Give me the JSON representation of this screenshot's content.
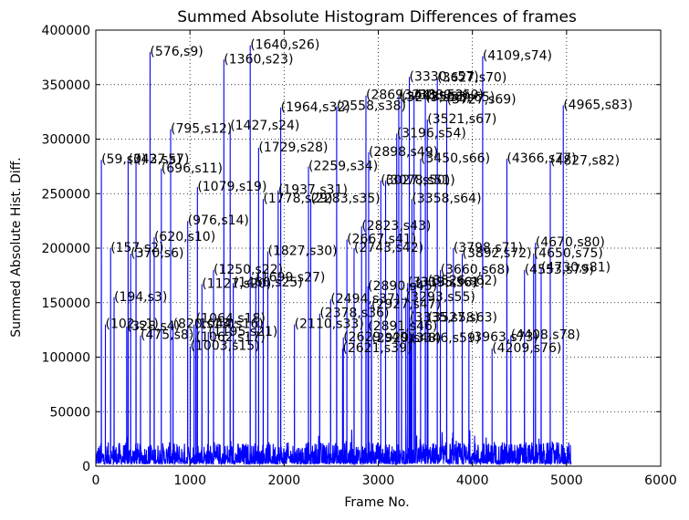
{
  "chart_data": {
    "type": "line",
    "title": "Summed Absolute Histogram Differences of frames",
    "xlabel": "Frame No.",
    "ylabel": "Summed Absolute Hist. Diff.",
    "xlim": [
      0,
      6000
    ],
    "ylim": [
      0,
      400000
    ],
    "xticks": [
      0,
      1000,
      2000,
      3000,
      4000,
      5000,
      6000
    ],
    "yticks": [
      0,
      50000,
      100000,
      150000,
      200000,
      250000,
      300000,
      350000,
      400000
    ],
    "grid": true,
    "series_color": "#0000ff",
    "baseline": {
      "x_start": 0,
      "x_end": 5050,
      "level_min": 2000,
      "level_max": 22000
    },
    "peaks": [
      {
        "label": "(59,s0)",
        "x": 59,
        "y": 281000
      },
      {
        "label": "(102,s1)",
        "x": 102,
        "y": 130000
      },
      {
        "label": "(157,s2)",
        "x": 157,
        "y": 200000
      },
      {
        "label": "(194,s3)",
        "x": 194,
        "y": 155000
      },
      {
        "label": "(328,s4)",
        "x": 328,
        "y": 128000
      },
      {
        "label": "(343,s5)",
        "x": 343,
        "y": 281000
      },
      {
        "label": "(370,s6)",
        "x": 370,
        "y": 195000
      },
      {
        "label": "(427,s7)",
        "x": 427,
        "y": 281000
      },
      {
        "label": "(475,s8)",
        "x": 475,
        "y": 120000
      },
      {
        "label": "(576,s9)",
        "x": 576,
        "y": 380000
      },
      {
        "label": "(620,s10)",
        "x": 620,
        "y": 210000
      },
      {
        "label": "(696,s11)",
        "x": 696,
        "y": 273000
      },
      {
        "label": "(795,s12)",
        "x": 795,
        "y": 309000
      },
      {
        "label": "(820,s13)",
        "x": 820,
        "y": 130000
      },
      {
        "label": "(976,s14)",
        "x": 976,
        "y": 225000
      },
      {
        "label": "(1003,s15)",
        "x": 1003,
        "y": 110000
      },
      {
        "label": "(1044,s16)",
        "x": 1044,
        "y": 130000
      },
      {
        "label": "(1062,s17)",
        "x": 1062,
        "y": 118000
      },
      {
        "label": "(1064,s18)",
        "x": 1064,
        "y": 135000
      },
      {
        "label": "(1079,s19)",
        "x": 1079,
        "y": 256000
      },
      {
        "label": "(1127,s20)",
        "x": 1127,
        "y": 167000
      },
      {
        "label": "(1195,s21)",
        "x": 1195,
        "y": 123000
      },
      {
        "label": "(1250,s22)",
        "x": 1250,
        "y": 180000
      },
      {
        "label": "(1360,s23)",
        "x": 1360,
        "y": 373000
      },
      {
        "label": "(1427,s24)",
        "x": 1427,
        "y": 312000
      },
      {
        "label": "(1460,s25)",
        "x": 1460,
        "y": 168000
      },
      {
        "label": "(1640,s26)",
        "x": 1640,
        "y": 386000
      },
      {
        "label": "(1699,s27)",
        "x": 1699,
        "y": 173000
      },
      {
        "label": "(1729,s28)",
        "x": 1729,
        "y": 292000
      },
      {
        "label": "(1778,s29)",
        "x": 1778,
        "y": 245000
      },
      {
        "label": "(1827,s30)",
        "x": 1827,
        "y": 197000
      },
      {
        "label": "(1937,s31)",
        "x": 1937,
        "y": 253000
      },
      {
        "label": "(1964,s32)",
        "x": 1964,
        "y": 329000
      },
      {
        "label": "(2110,s33)",
        "x": 2110,
        "y": 130000
      },
      {
        "label": "(2259,s34)",
        "x": 2259,
        "y": 275000
      },
      {
        "label": "(2283,s35)",
        "x": 2283,
        "y": 245000
      },
      {
        "label": "(2378,s36)",
        "x": 2378,
        "y": 140000
      },
      {
        "label": "(2494,s37)",
        "x": 2494,
        "y": 153000
      },
      {
        "label": "(2558,s38)",
        "x": 2558,
        "y": 330000
      },
      {
        "label": "(2621,s39)",
        "x": 2621,
        "y": 108000
      },
      {
        "label": "(2629,s40)",
        "x": 2629,
        "y": 118000
      },
      {
        "label": "(2667,s41)",
        "x": 2667,
        "y": 208000
      },
      {
        "label": "(2743,s42)",
        "x": 2743,
        "y": 200000
      },
      {
        "label": "(2823,s43)",
        "x": 2823,
        "y": 220000
      },
      {
        "label": "(2869,s44)",
        "x": 2869,
        "y": 340000
      },
      {
        "label": "(2890,s45)",
        "x": 2890,
        "y": 165000
      },
      {
        "label": "(2891,s46)",
        "x": 2891,
        "y": 128000
      },
      {
        "label": "(2898,s49)",
        "x": 2898,
        "y": 288000
      },
      {
        "label": "(2927,s47)",
        "x": 2927,
        "y": 148000
      },
      {
        "label": "(2929,s48)",
        "x": 2929,
        "y": 117000
      },
      {
        "label": "(3027,s50)",
        "x": 3027,
        "y": 262000
      },
      {
        "label": "(3078,s51)",
        "x": 3078,
        "y": 262000
      },
      {
        "label": "(3196,s54)",
        "x": 3196,
        "y": 305000
      },
      {
        "label": "(3218,s52)",
        "x": 3218,
        "y": 340000
      },
      {
        "label": "(3247,s53)",
        "x": 3247,
        "y": 338000
      },
      {
        "label": "(3293,s55)",
        "x": 3293,
        "y": 155000
      },
      {
        "label": "(3313,s56)",
        "x": 3313,
        "y": 168000
      },
      {
        "label": "(3330,s57)",
        "x": 3330,
        "y": 357000
      },
      {
        "label": "(3335,s58)",
        "x": 3335,
        "y": 136000
      },
      {
        "label": "(3346,s59)",
        "x": 3346,
        "y": 117000
      },
      {
        "label": "(3358,s64)",
        "x": 3358,
        "y": 245000
      },
      {
        "label": "(3380,s60)",
        "x": 3380,
        "y": 340000
      },
      {
        "label": "(3395,s61)",
        "x": 3395,
        "y": 168000
      },
      {
        "label": "(3450,s66)",
        "x": 3450,
        "y": 282000
      },
      {
        "label": "(3500,s65)",
        "x": 3500,
        "y": 338000
      },
      {
        "label": "(3521,s67)",
        "x": 3521,
        "y": 318000
      },
      {
        "label": "(3526,s62)",
        "x": 3526,
        "y": 170000
      },
      {
        "label": "(3527,s63)",
        "x": 3527,
        "y": 136000
      },
      {
        "label": "(3627,s70)",
        "x": 3627,
        "y": 356000
      },
      {
        "label": "(3660,s68)",
        "x": 3660,
        "y": 180000
      },
      {
        "label": "(3727,s69)",
        "x": 3727,
        "y": 336000
      },
      {
        "label": "(3798,s71)",
        "x": 3798,
        "y": 200000
      },
      {
        "label": "(3892,s72)",
        "x": 3892,
        "y": 195000
      },
      {
        "label": "(3963,s73)",
        "x": 3963,
        "y": 118000
      },
      {
        "label": "(4109,s74)",
        "x": 4109,
        "y": 376000
      },
      {
        "label": "(4209,s76)",
        "x": 4209,
        "y": 108000
      },
      {
        "label": "(4366,s77)",
        "x": 4366,
        "y": 282000
      },
      {
        "label": "(4408,s78)",
        "x": 4408,
        "y": 120000
      },
      {
        "label": "(4553,s79)",
        "x": 4553,
        "y": 180000
      },
      {
        "label": "(4650,s75)",
        "x": 4650,
        "y": 195000
      },
      {
        "label": "(4670,s80)",
        "x": 4670,
        "y": 205000
      },
      {
        "label": "(4730,s81)",
        "x": 4730,
        "y": 182000
      },
      {
        "label": "(4827,s82)",
        "x": 4827,
        "y": 280000
      },
      {
        "label": "(4965,s83)",
        "x": 4965,
        "y": 331000
      }
    ]
  }
}
